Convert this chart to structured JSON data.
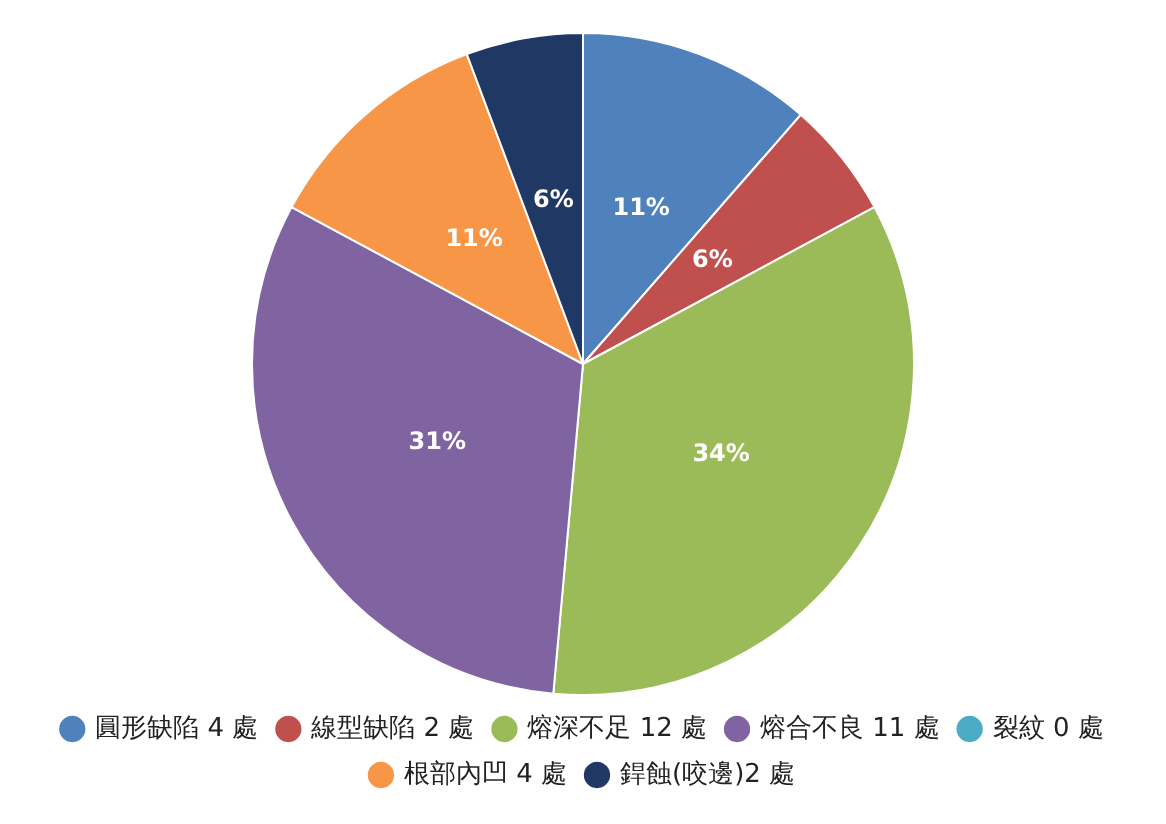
{
  "chart_data": {
    "type": "pie",
    "categories": [
      "圓形缺陷 4 處",
      "線型缺陷 2 處",
      "熔深不足 12 處",
      "熔合不良 11 處",
      "裂紋 0 處",
      "根部內凹 4 處",
      "銲蝕(咬邊)2 處"
    ],
    "values": [
      11.43,
      5.71,
      34.29,
      31.43,
      0,
      11.43,
      5.71
    ],
    "colors": [
      "#4f81bd",
      "#c0504d",
      "#9bbb59",
      "#8064a2",
      "#4bacc6",
      "#f79646",
      "#1f3864"
    ],
    "value_labels": [
      "11%",
      "6%",
      "34%",
      "31%",
      null,
      "11%",
      "6%"
    ],
    "legend": "bottom"
  }
}
